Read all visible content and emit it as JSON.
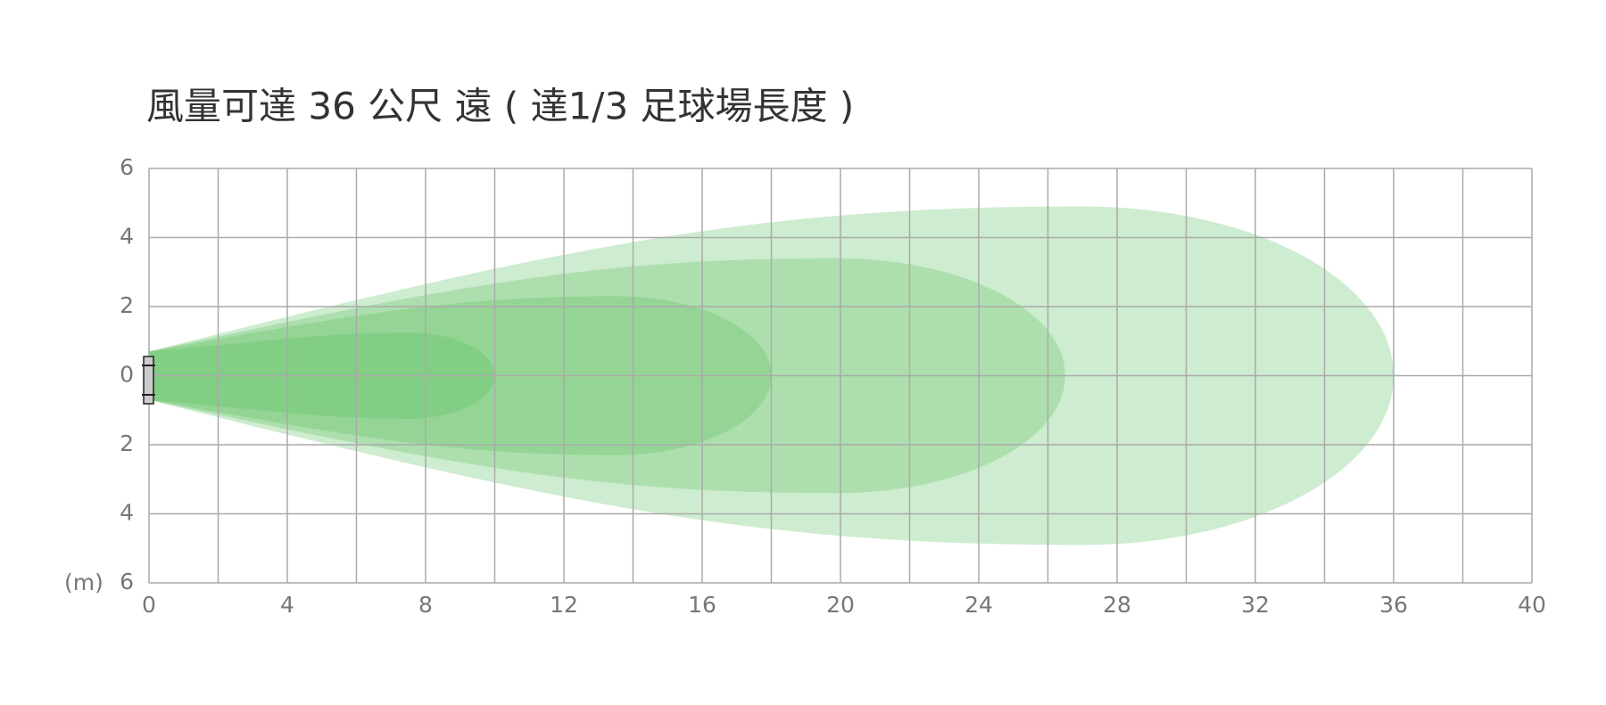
{
  "chart_data": {
    "type": "airflow",
    "title": "風量可達 36 公尺 遠 ( 達1/3 足球場長度 )",
    "unit_label": "(m)",
    "xlim": [
      0,
      40
    ],
    "xticks": [
      0,
      4,
      8,
      12,
      16,
      20,
      24,
      28,
      32,
      36,
      40
    ],
    "ylim": [
      -6,
      6
    ],
    "yticks": [
      6,
      4,
      2,
      0,
      {
        "value": -2,
        "label": "2"
      },
      {
        "value": -4,
        "label": "4"
      },
      {
        "value": -6,
        "label": "6"
      }
    ],
    "grid": true,
    "series": [
      {
        "color": "#5cbf60",
        "reach": 36,
        "half_width": 4.9
      },
      {
        "color": "#5cbf60",
        "reach": 26.5,
        "half_width": 3.4
      },
      {
        "color": "#5cbf60",
        "reach": 18,
        "half_width": 2.3
      },
      {
        "color": "#5cbf60",
        "reach": 10,
        "half_width": 1.25
      }
    ]
  }
}
